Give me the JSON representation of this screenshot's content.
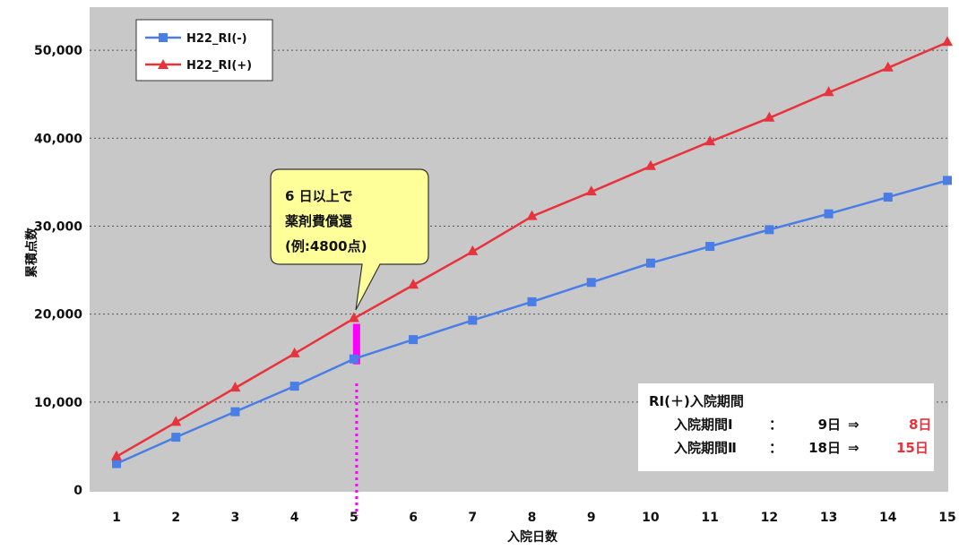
{
  "chart_data": {
    "type": "line",
    "x": [
      1,
      2,
      3,
      4,
      5,
      6,
      7,
      8,
      9,
      10,
      11,
      12,
      13,
      14,
      15
    ],
    "series": [
      {
        "name": "H22_RI(-)",
        "color": "#4a7ee6",
        "marker": "square",
        "values": [
          3000,
          6000,
          8900,
          11800,
          14900,
          17100,
          19300,
          21400,
          23600,
          25800,
          27700,
          29600,
          31400,
          33300,
          35200
        ]
      },
      {
        "name": "H22_RI(+)",
        "color": "#e8323c",
        "marker": "triangle",
        "values": [
          3800,
          7700,
          11600,
          15500,
          19500,
          23300,
          27100,
          31100,
          33900,
          36800,
          39600,
          42300,
          45200,
          48000,
          50900
        ]
      }
    ],
    "xlabel": "入院日数",
    "ylabel": "累積点数",
    "ylim": [
      0,
      55000
    ],
    "yticks": [
      0,
      10000,
      20000,
      30000,
      40000,
      50000
    ],
    "ytick_labels": [
      "0",
      "10,000",
      "20,000",
      "30,000",
      "40,000",
      "50,000"
    ],
    "xlim": [
      1,
      15
    ],
    "grid": "horizontal-dotted",
    "plot_background": "#c8c8c8",
    "legend_position": "top-left",
    "annotations": {
      "callout": {
        "lines": [
          "6 日以上で",
          "薬剤費償還",
          "(例:4800点)"
        ],
        "fill": "#ffff99",
        "points_to": {
          "x": 5,
          "y": 19500
        }
      },
      "highlight_bar": {
        "x": 5,
        "from": 14900,
        "to": 19500,
        "color": "#ff00ff"
      },
      "vertical_marker": {
        "x": 5,
        "color": "#ff00ff",
        "style": "dotted"
      }
    },
    "info_box": {
      "title": "RI(＋)入院期間",
      "rows": [
        {
          "label": "入院期間Ⅰ",
          "sep": "：",
          "from": "9日",
          "arrow": "⇒",
          "to": "8日"
        },
        {
          "label": "入院期間Ⅱ",
          "sep": "：",
          "from": "18日",
          "arrow": "⇒",
          "to": "15日"
        }
      ],
      "highlight_color": "#e8323c"
    }
  }
}
